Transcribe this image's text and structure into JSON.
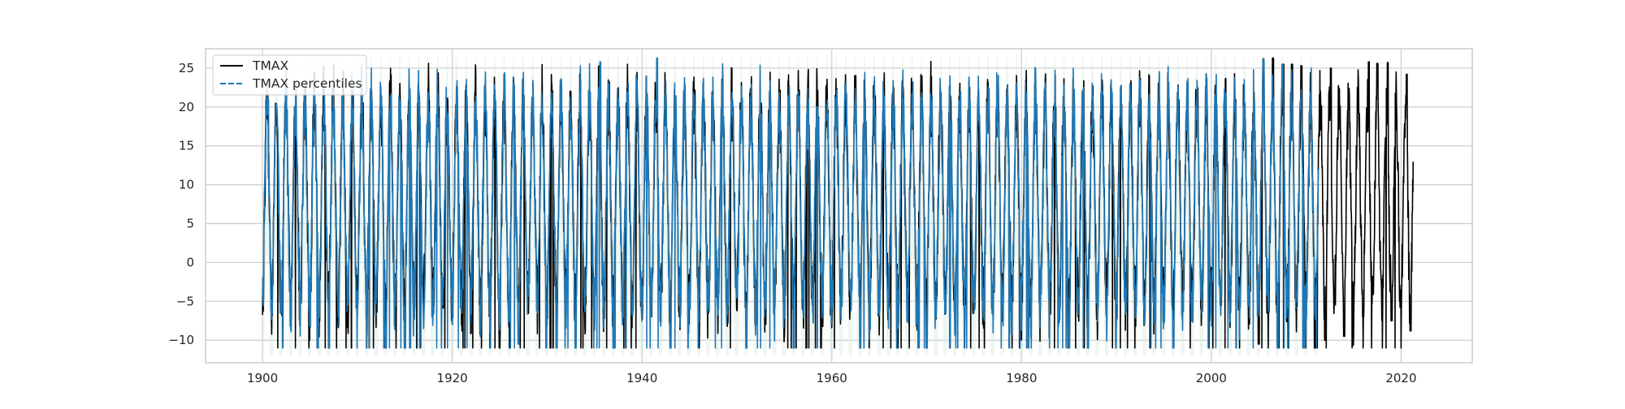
{
  "chart_data": {
    "type": "line",
    "title": "",
    "xlabel": "",
    "ylabel": "",
    "xlim": [
      1894,
      2027.5
    ],
    "ylim": [
      -12.9,
      27.5
    ],
    "x_ticks": [
      1900,
      1920,
      1940,
      1960,
      1980,
      2000,
      2020
    ],
    "x_tick_labels": [
      "1900",
      "1920",
      "1940",
      "1960",
      "1980",
      "2000",
      "2020"
    ],
    "y_ticks": [
      -10,
      -5,
      0,
      5,
      10,
      15,
      20,
      25
    ],
    "y_tick_labels": [
      "−10",
      "−5",
      "0",
      "5",
      "10",
      "15",
      "20",
      "25"
    ],
    "grid": true,
    "legend_position": "top-left",
    "colors": {
      "tmax": "#000000",
      "tmax_percentiles": "#1f77b4",
      "percentile_band": "#d8ebe0",
      "grid": "#cccccc",
      "frame": "#cccccc"
    },
    "series": [
      {
        "name": "TMAX",
        "style": "solid",
        "x_range": [
          1900.0,
          2021.3
        ],
        "seasonal_cycle": {
          "period_years": 1.0,
          "typical_summer_peak": 21.0,
          "typical_winter_trough": -5.5
        },
        "extremes_peak_years": [
          2005.5,
          2006.5,
          2007.6,
          2008.5,
          2009.5,
          2012.6,
          2016.6,
          2017.5,
          2018.6,
          2020.6
        ],
        "extremes_peak_values": [
          26.2,
          26.3,
          25.5,
          25.5,
          25.3,
          25.0,
          25.8,
          25.6,
          25.7,
          24.2
        ],
        "extremes_trough_years": [
          2005.0,
          2007.0,
          2010.9,
          2012.0,
          2014.0,
          2016.0,
          2019.0,
          2021.0
        ],
        "extremes_trough_values": [
          -10.5,
          -10.8,
          -11.0,
          -10.0,
          -9.5,
          -7.0,
          -7.5,
          -8.8
        ]
      },
      {
        "name": "TMAX percentiles",
        "style": "dashed",
        "x_range": [
          1900.0,
          2011.3
        ],
        "seasonal_cycle": {
          "period_years": 1.0,
          "typical_summer_peak": 21.0,
          "typical_winter_trough": -5.5
        },
        "extremes_peak_years": [
          1900.6,
          1935.6,
          1941.6,
          2005.5,
          2007.5
        ],
        "extremes_peak_values": [
          21.0,
          25.8,
          26.3,
          26.2,
          25.5
        ],
        "extremes_trough_years": [
          1901.9,
          1907.0,
          1913.0,
          1915.0,
          1927.0,
          1929.9,
          1931.0,
          1933.0,
          1937.0,
          1943.0,
          1951.0,
          1956.0,
          1963.0,
          1970.0,
          1985.0,
          1987.0,
          1996.0,
          2007.0,
          2009.8
        ],
        "extremes_trough_values": [
          -6.5,
          -11.0,
          -11.0,
          -11.0,
          -10.5,
          -11.0,
          -11.0,
          -11.0,
          -11.0,
          -11.0,
          -11.0,
          -11.0,
          -11.0,
          -11.0,
          -11.0,
          -11.0,
          -11.0,
          -11.0,
          -11.0
        ]
      }
    ]
  }
}
